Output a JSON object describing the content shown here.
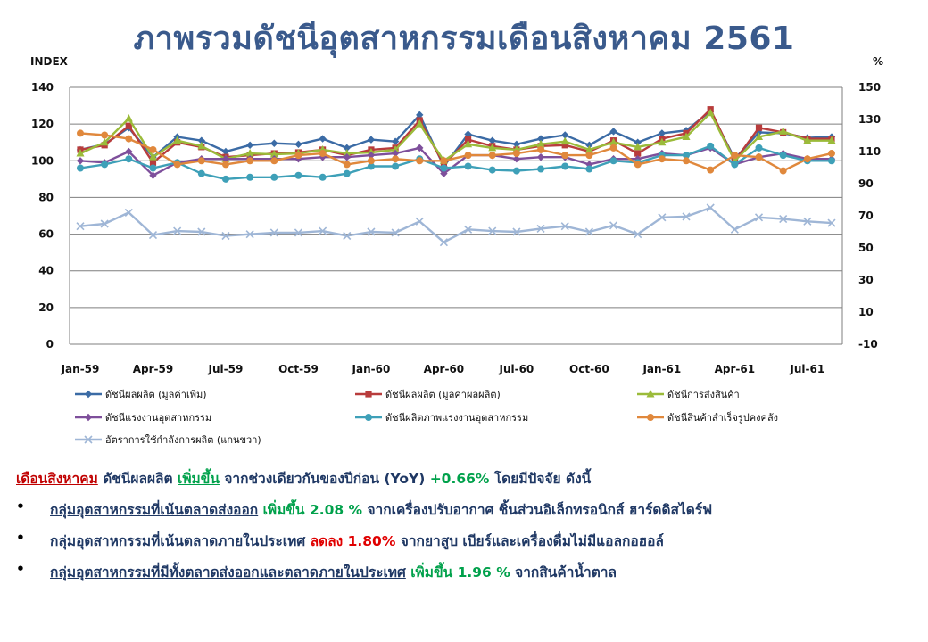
{
  "title": "ภาพรวมดัชนีอุตสาหกรรมเดือนสิงหาคม 2561",
  "chart_data": {
    "type": "line",
    "left_axis_unit": "INDEX",
    "right_axis_unit": "%",
    "ylim": [
      0,
      140
    ],
    "y2lim": [
      -10,
      150
    ],
    "y_ticks": [
      0,
      20,
      40,
      60,
      80,
      100,
      120,
      140
    ],
    "y2_ticks": [
      -10,
      10,
      30,
      50,
      70,
      90,
      110,
      130,
      150
    ],
    "x_tick_labels": [
      "Jan-59",
      "Apr-59",
      "Jul-59",
      "Oct-59",
      "Jan-60",
      "Apr-60",
      "Jul-60",
      "Oct-60",
      "Jan-61",
      "Apr-61",
      "Jul-61"
    ],
    "x_tick_index": [
      0,
      3,
      6,
      9,
      12,
      15,
      18,
      21,
      24,
      27,
      30
    ],
    "grid": "horizontal",
    "legend_position": "bottom",
    "series": [
      {
        "name": "ดัชนีผลผลิต (มูลค่าเพิ่ม)",
        "color": "#3b6ba5",
        "marker": "diamond",
        "axis": "left",
        "values": [
          106,
          109,
          118,
          102,
          113,
          111,
          105,
          108.5,
          109.5,
          109,
          112,
          107,
          111.5,
          110.5,
          125,
          97,
          114.5,
          111,
          109,
          112,
          114,
          108.5,
          116,
          110,
          115,
          116.5,
          127,
          101,
          115.5,
          115,
          112.5,
          113
        ]
      },
      {
        "name": "ดัชนีผลผลิต (มูลค่าผลผลิต)",
        "color": "#b83c3c",
        "marker": "square",
        "axis": "left",
        "values": [
          106,
          108.5,
          119,
          99,
          110,
          107.5,
          102,
          103,
          104,
          104.5,
          106,
          103,
          106,
          107,
          122,
          98,
          111.5,
          108,
          106,
          108,
          108.5,
          105,
          111,
          104,
          112,
          115,
          128,
          100,
          118,
          115.5,
          112,
          112
        ]
      },
      {
        "name": "ดัชนีการส่งสินค้า",
        "color": "#9bbb3a",
        "marker": "triangle",
        "axis": "left",
        "values": [
          104,
          110,
          123,
          102,
          111,
          108,
          101,
          104,
          103.5,
          104,
          106,
          104,
          104.5,
          106,
          120,
          100,
          109,
          107,
          106,
          109,
          110.5,
          106,
          110,
          107.5,
          110,
          113,
          126,
          100,
          113,
          116,
          111,
          111
        ]
      },
      {
        "name": "ดัชนีแรงงานอุตสาหกรรม",
        "color": "#7e4f9b",
        "marker": "diamond",
        "axis": "left",
        "values": [
          100,
          99,
          105,
          92,
          99,
          101,
          101,
          101,
          101,
          101,
          102,
          102,
          103,
          104,
          107,
          93,
          103,
          103,
          101,
          102,
          102,
          98,
          101,
          101,
          104,
          103,
          107,
          98,
          102,
          104,
          101,
          101
        ]
      },
      {
        "name": "ดัชนีผลิตภาพแรงงานอุตสาหกรรม",
        "color": "#3ea0b8",
        "marker": "circle",
        "axis": "left",
        "values": [
          96,
          98,
          101,
          96,
          99,
          93,
          90,
          91,
          91,
          92,
          91,
          93,
          97,
          97,
          101,
          96,
          97,
          95,
          94.5,
          95.5,
          97,
          95.5,
          100,
          99,
          103,
          103,
          108,
          98,
          107,
          103,
          100,
          100
        ]
      },
      {
        "name": "ดัชนีสินค้าสำเร็จรูปคงคลัง",
        "color": "#e0883c",
        "marker": "circle",
        "axis": "left",
        "values": [
          115,
          114,
          112,
          106,
          98,
          100,
          98,
          100,
          100,
          103,
          104,
          98,
          100,
          101,
          100,
          100,
          103,
          103,
          104,
          106,
          103,
          103,
          107,
          98,
          101,
          100,
          95,
          103,
          102,
          94.5,
          101,
          104
        ]
      },
      {
        "name": "อัตราการใช้กำลังการผลิต (แกนขวา)",
        "color": "#9fb6d6",
        "marker": "x",
        "axis": "right",
        "values": [
          63.5,
          65,
          72,
          58,
          60.5,
          60,
          57.5,
          58.5,
          59.5,
          59.5,
          60.5,
          57.5,
          60,
          59.5,
          66.5,
          53.5,
          61.5,
          60.5,
          60,
          62,
          63.5,
          60,
          64,
          58.5,
          69,
          69.5,
          75,
          61.5,
          69,
          68,
          66.5,
          65.5
        ]
      }
    ]
  },
  "summary": {
    "month": "เดือนสิงหาคม",
    "intro": " ดัชนีผลผลิต ",
    "direction": "เพิ่มขึ้น",
    "intro_rest": " จากช่วงเดียวกันของปีก่อน (YoY) ",
    "change": "+0.66%",
    "tail": " โดยมีปัจจัย ดังนี้",
    "bullets": [
      {
        "bullet": "•",
        "group": "กลุ่มอุตสาหกรรมที่เน้นตลาดส่งออก",
        "change": " เพิ่มขึ้น 2.08 %",
        "change_color": "green",
        "detail": " จากเครื่องปรับอากาศ ชิ้นส่วนอิเล็กทรอนิกส์ ฮาร์ดดิสไดร์ฟ"
      },
      {
        "bullet": "•",
        "group": "กลุ่มอุตสาหกรรมที่เน้นตลาดภายในประเทศ",
        "change": " ลดลง 1.80%",
        "change_color": "red",
        "detail": " จากยาสูบ เบียร์และเครื่องดื่มไม่มีแอลกอฮอล์"
      },
      {
        "bullet": "•",
        "group": "กลุ่มอุตสาหกรรมที่มีทั้งตลาดส่งออกและตลาดภายในประเทศ",
        "change": " เพิ่มขึ้น 1.96 %",
        "change_color": "green",
        "detail": " จากสินค้าน้ำตาล"
      }
    ]
  }
}
